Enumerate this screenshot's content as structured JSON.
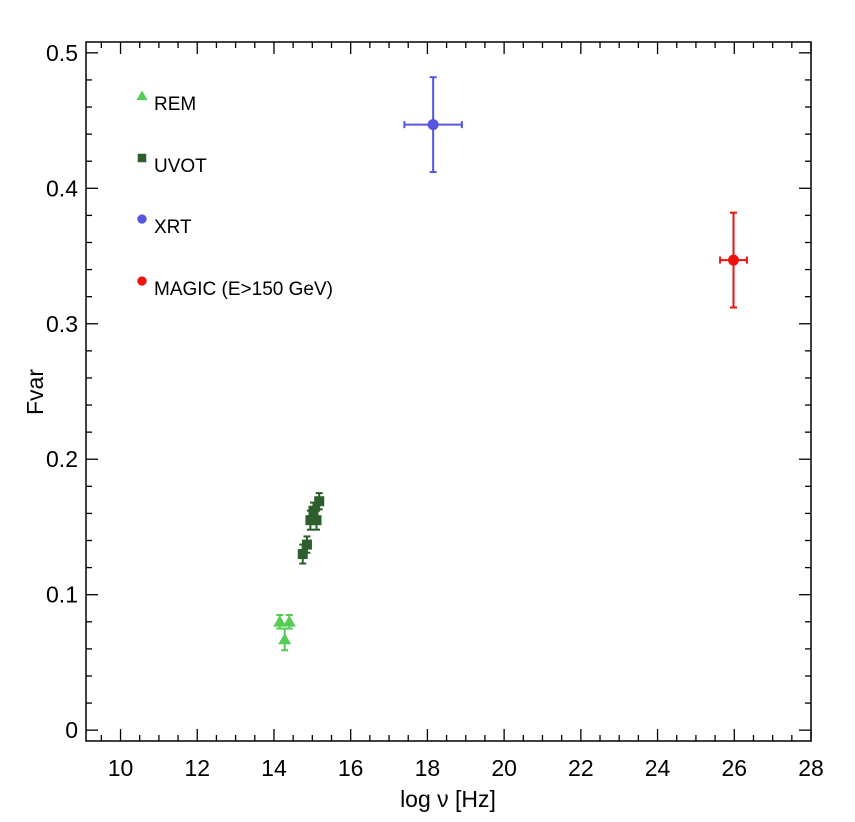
{
  "chart_data": {
    "type": "scatter",
    "title": "",
    "xlabel": "log ν [Hz]",
    "ylabel": "Fvar",
    "xlim": [
      9.1,
      28.0
    ],
    "ylim": [
      -0.008,
      0.508
    ],
    "x_major_ticks": [
      10,
      12,
      14,
      16,
      18,
      20,
      22,
      24,
      26,
      28
    ],
    "x_minor_step": 0.5,
    "y_major_ticks": [
      0,
      0.1,
      0.2,
      0.3,
      0.4,
      0.5
    ],
    "y_tick_labels": [
      "0",
      "0.1",
      "0.2",
      "0.3",
      "0.4",
      "0.5"
    ],
    "y_minor_step": 0.02,
    "grid": false,
    "legend_position": "top-left",
    "series": [
      {
        "name": "REM",
        "marker": "triangle",
        "color": "#55cc55",
        "points": [
          {
            "x": 14.15,
            "y": 0.08,
            "yerr": 0.005
          },
          {
            "x": 14.28,
            "y": 0.067,
            "yerr": 0.008
          },
          {
            "x": 14.4,
            "y": 0.08,
            "yerr": 0.005
          }
        ]
      },
      {
        "name": "UVOT",
        "marker": "square",
        "color": "#2e5e2e",
        "points": [
          {
            "x": 14.75,
            "y": 0.13,
            "yerr": 0.007
          },
          {
            "x": 14.86,
            "y": 0.137,
            "yerr": 0.006
          },
          {
            "x": 14.95,
            "y": 0.155,
            "yerr": 0.007
          },
          {
            "x": 15.03,
            "y": 0.162,
            "yerr": 0.006
          },
          {
            "x": 15.11,
            "y": 0.155,
            "yerr": 0.007
          },
          {
            "x": 15.18,
            "y": 0.169,
            "yerr": 0.006
          }
        ]
      },
      {
        "name": "XRT",
        "marker": "circle",
        "color": "#5555dd",
        "points": [
          {
            "x": 18.15,
            "y": 0.447,
            "yerr": 0.035,
            "xerr": 0.75
          }
        ]
      },
      {
        "name": "MAGIC (E>150 GeV)",
        "marker": "circle",
        "color": "#ee1111",
        "points": [
          {
            "x": 25.98,
            "y": 0.347,
            "yerr": 0.035,
            "xerr": 0.35
          }
        ]
      }
    ]
  }
}
